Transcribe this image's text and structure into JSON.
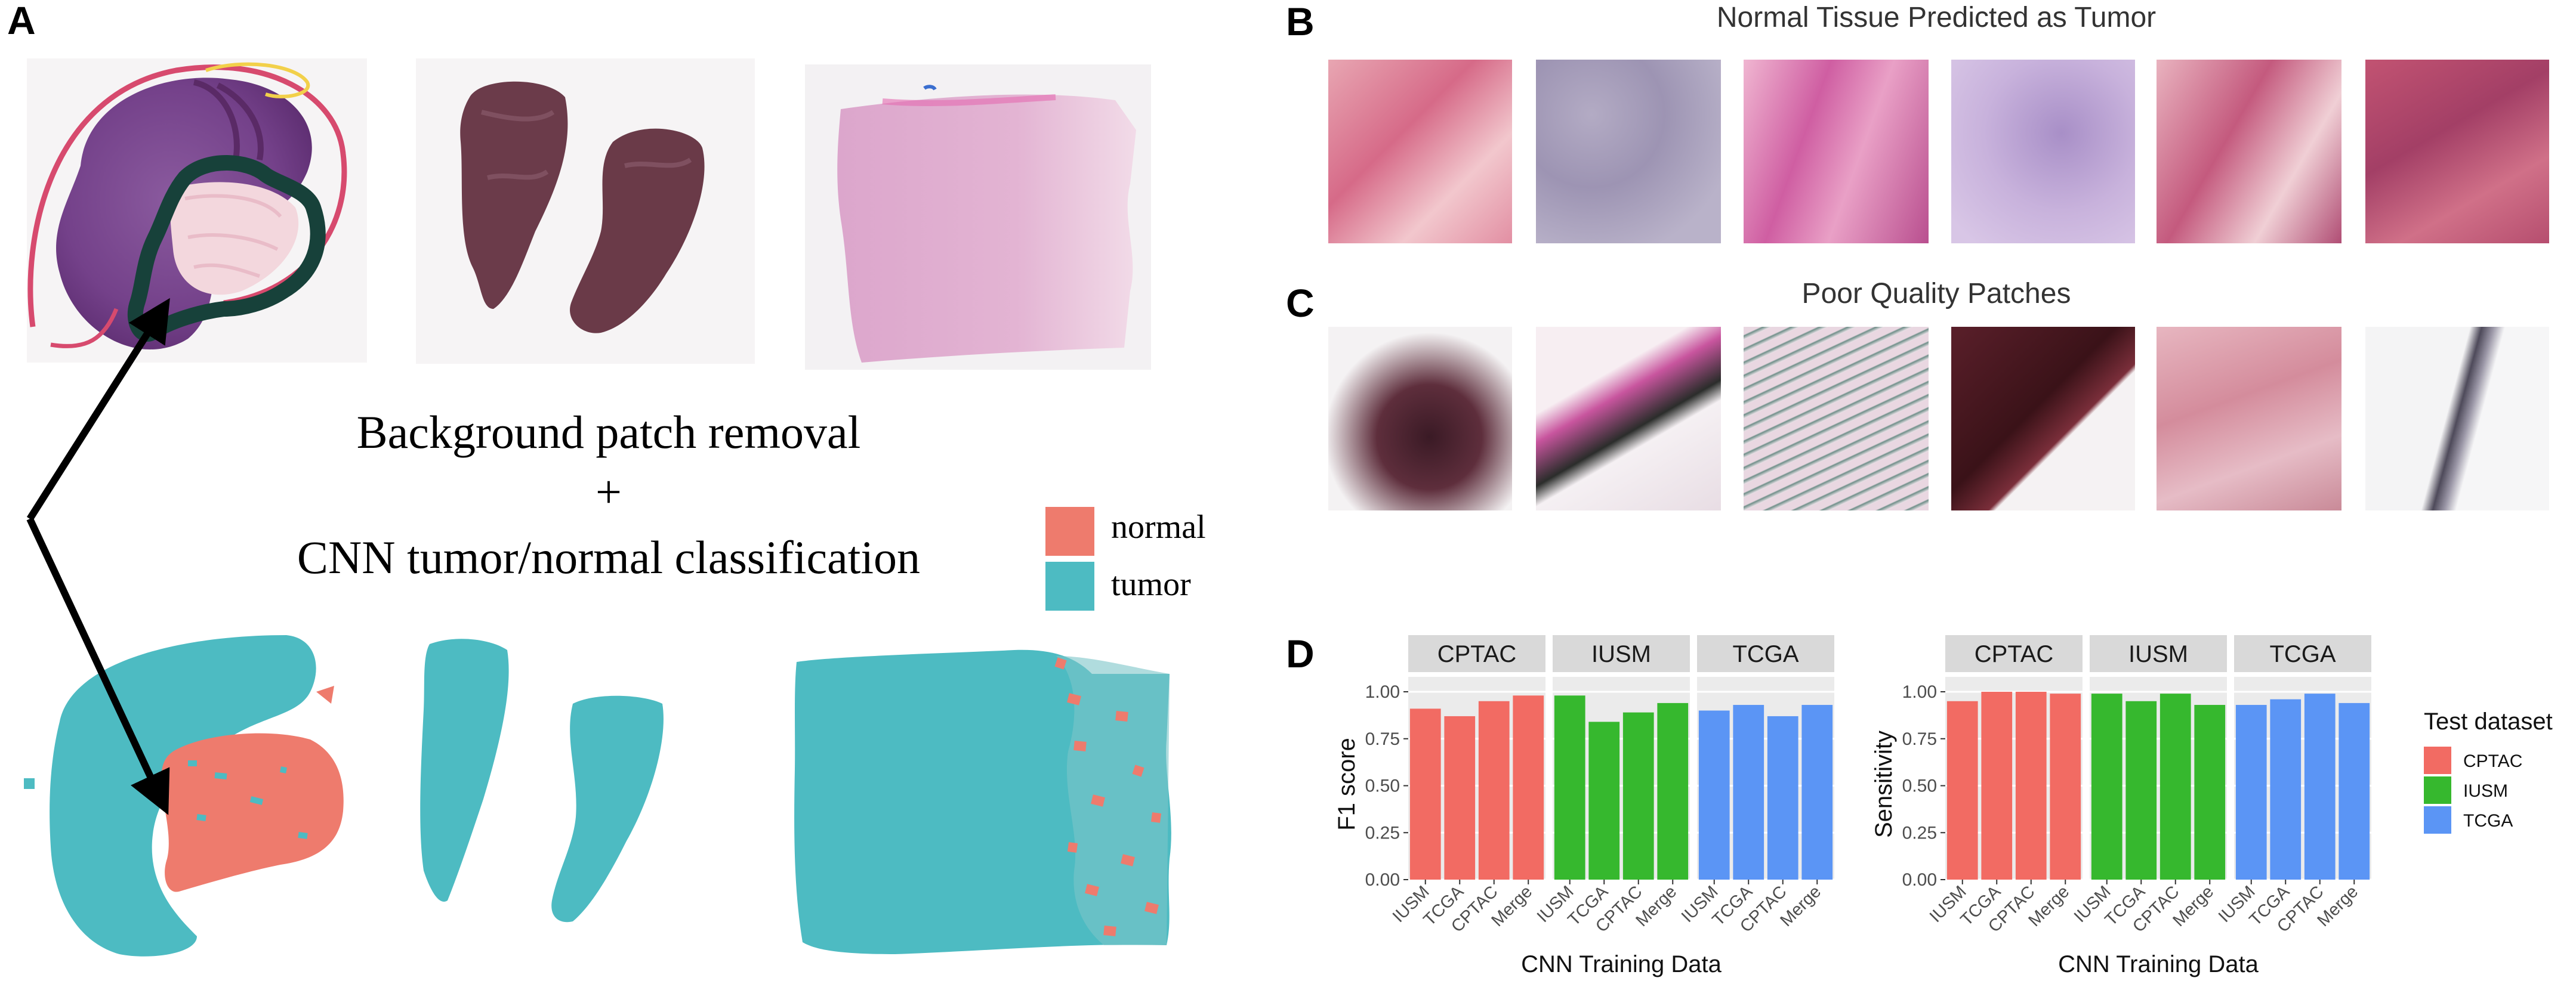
{
  "panel_a": {
    "letter": "A",
    "method_line1": "Background patch removal",
    "method_line2": "+",
    "method_line3": "CNN tumor/normal classification",
    "legend": [
      {
        "label": "normal",
        "color": "#EE7B6D"
      },
      {
        "label": "tumor",
        "color": "#4DBBC2"
      }
    ]
  },
  "panel_b": {
    "letter": "B",
    "title": "Normal Tissue Predicted as Tumor"
  },
  "panel_c": {
    "letter": "C",
    "title": "Poor Quality Patches"
  },
  "panel_d": {
    "letter": "D",
    "legend_title": "Test dataset",
    "legend": [
      {
        "label": "CPTAC",
        "color": "#F26B63"
      },
      {
        "label": "IUSM",
        "color": "#36B82E"
      },
      {
        "label": "TCGA",
        "color": "#5B95F5"
      }
    ],
    "facet_colors": {
      "CPTAC": "#F26B63",
      "IUSM": "#36B82E",
      "TCGA": "#5B95F5"
    }
  },
  "chart_data": [
    {
      "type": "bar",
      "ylabel": "F1 score",
      "xlabel": "CNN Training Data",
      "ylim": [
        0,
        1.0
      ],
      "yticks": [
        "0.00",
        "0.25",
        "0.50",
        "0.75",
        "1.00"
      ],
      "facets": [
        {
          "name": "CPTAC",
          "categories": [
            "IUSM",
            "TCGA",
            "CPTAC",
            "Merge"
          ],
          "values": [
            0.91,
            0.87,
            0.95,
            0.98
          ]
        },
        {
          "name": "IUSM",
          "categories": [
            "IUSM",
            "TCGA",
            "CPTAC",
            "Merge"
          ],
          "values": [
            0.98,
            0.84,
            0.89,
            0.94
          ]
        },
        {
          "name": "TCGA",
          "categories": [
            "IUSM",
            "TCGA",
            "CPTAC",
            "Merge"
          ],
          "values": [
            0.9,
            0.93,
            0.87,
            0.93
          ]
        }
      ]
    },
    {
      "type": "bar",
      "ylabel": "Sensitivity",
      "xlabel": "CNN Training Data",
      "ylim": [
        0,
        1.0
      ],
      "yticks": [
        "0.00",
        "0.25",
        "0.50",
        "0.75",
        "1.00"
      ],
      "facets": [
        {
          "name": "CPTAC",
          "categories": [
            "IUSM",
            "TCGA",
            "CPTAC",
            "Merge"
          ],
          "values": [
            0.95,
            1.0,
            1.0,
            0.99
          ]
        },
        {
          "name": "IUSM",
          "categories": [
            "IUSM",
            "TCGA",
            "CPTAC",
            "Merge"
          ],
          "values": [
            0.99,
            0.95,
            0.99,
            0.93
          ]
        },
        {
          "name": "TCGA",
          "categories": [
            "IUSM",
            "TCGA",
            "CPTAC",
            "Merge"
          ],
          "values": [
            0.93,
            0.96,
            0.99,
            0.94
          ]
        }
      ]
    }
  ]
}
